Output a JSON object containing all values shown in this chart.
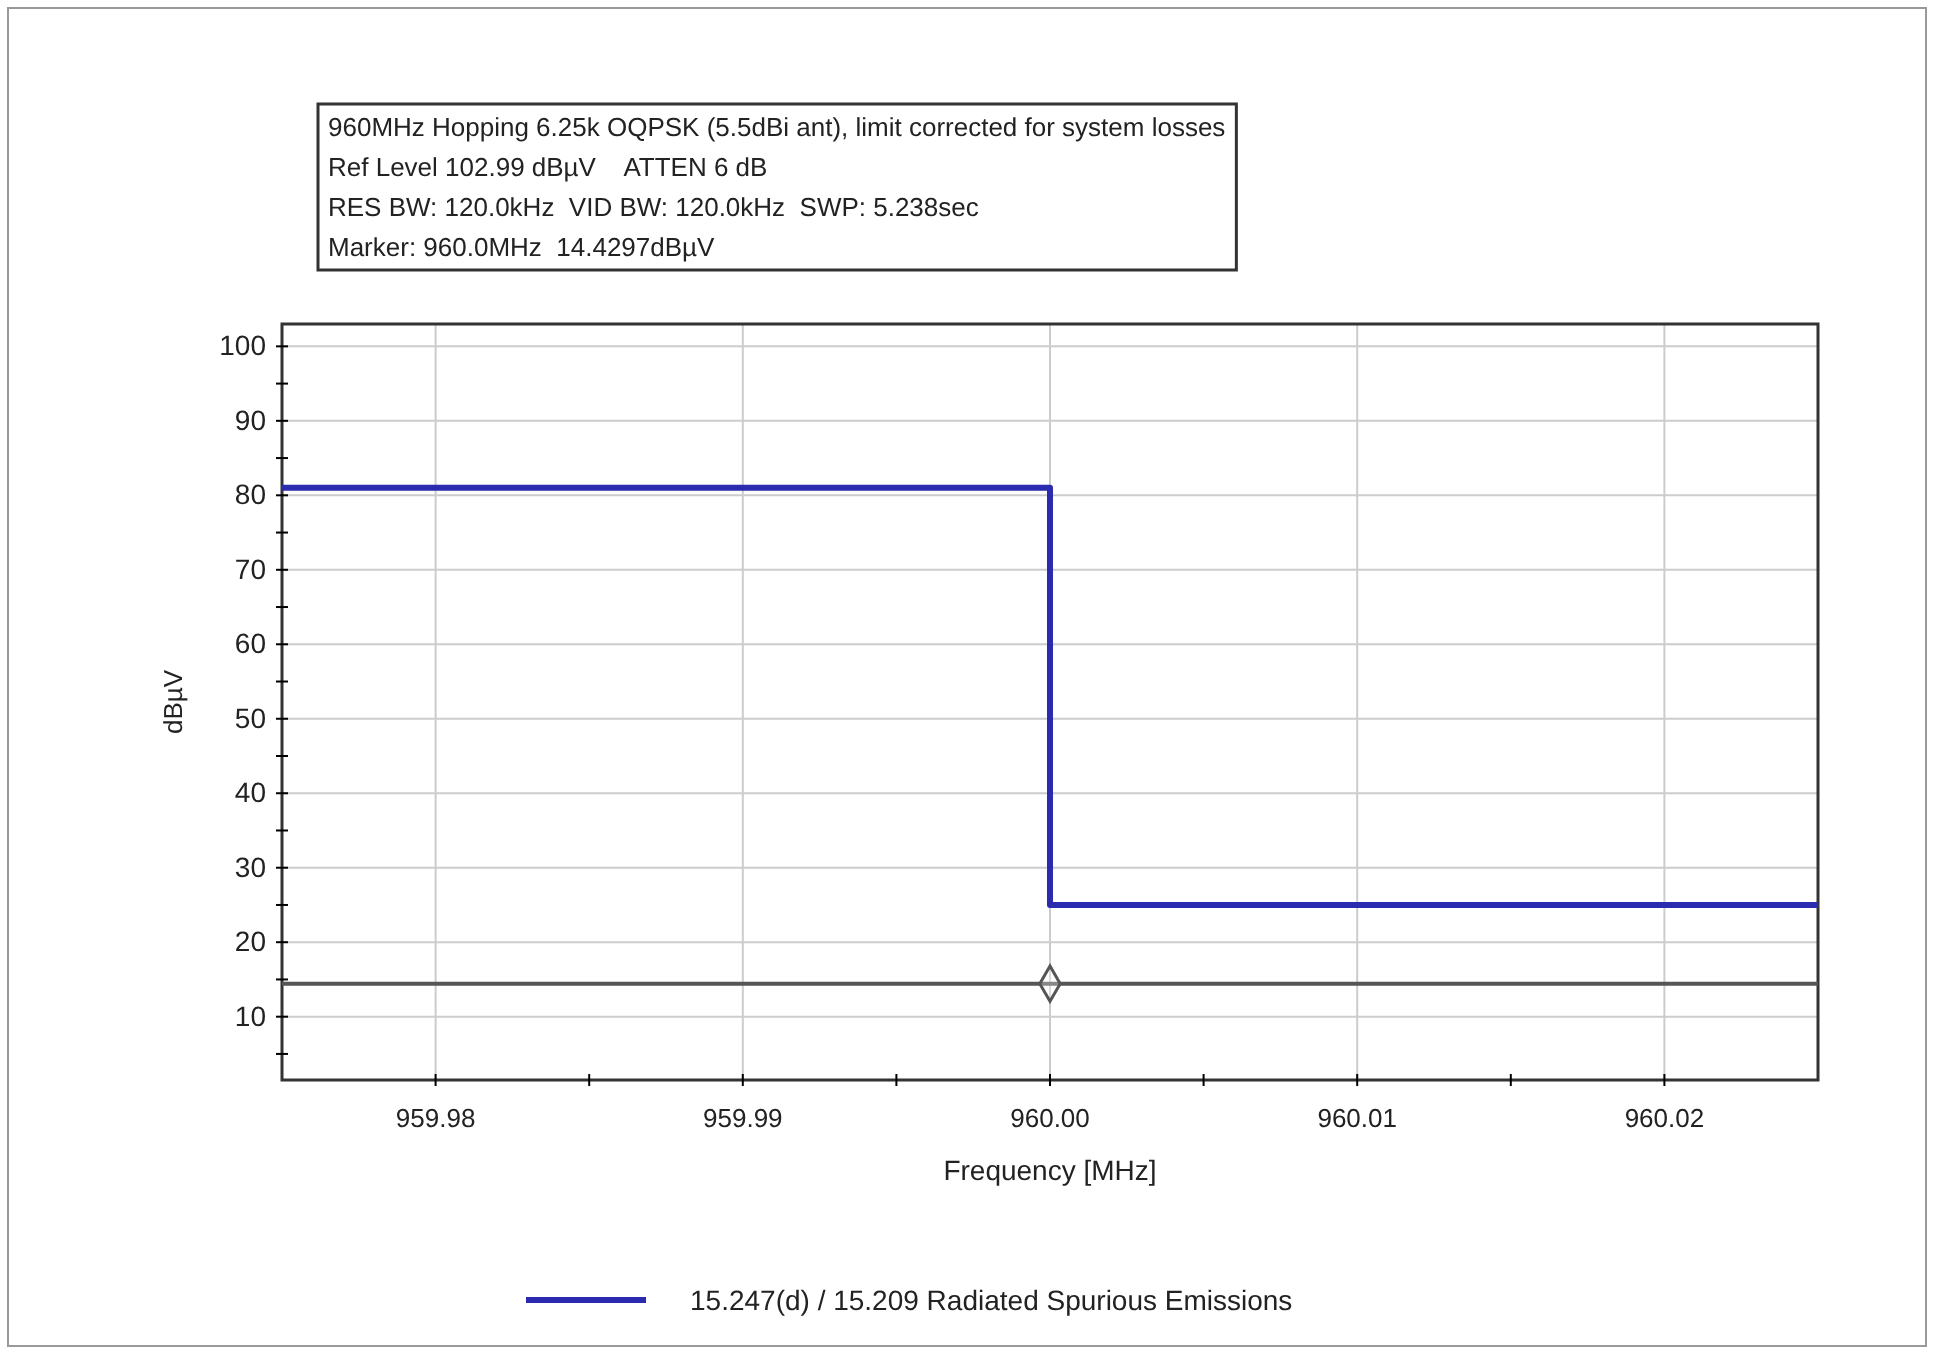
{
  "chart_data": {
    "type": "step",
    "title": "960MHz Hopping 6.25k OQPSK (5.5dBi ant), limit corrected for system losses",
    "annotations": [
      "Ref Level 102.99 dBµV    ATTEN 6 dB",
      "RES BW: 120.0kHz  VID BW: 120.0kHz  SWP: 5.238sec",
      "Marker: 960.0MHz  14.4297dBµV"
    ],
    "xlabel": "Frequency [MHz]",
    "ylabel": "dBµV",
    "xlim": [
      959.975,
      960.025
    ],
    "ylim": [
      1.5,
      103
    ],
    "xticks": [
      {
        "value": 959.98,
        "label": "959.98"
      },
      {
        "value": 959.985,
        "label": null
      },
      {
        "value": 959.99,
        "label": "959.99"
      },
      {
        "value": 959.995,
        "label": null
      },
      {
        "value": 960.0,
        "label": "960.00"
      },
      {
        "value": 960.005,
        "label": null
      },
      {
        "value": 960.01,
        "label": "960.01"
      },
      {
        "value": 960.015,
        "label": null
      },
      {
        "value": 960.02,
        "label": "960.02"
      }
    ],
    "yticks": [
      {
        "value": 5,
        "label": null
      },
      10,
      {
        "value": 15,
        "label": null
      },
      20,
      {
        "value": 25,
        "label": null
      },
      30,
      {
        "value": 35,
        "label": null
      },
      40,
      {
        "value": 45,
        "label": null
      },
      50,
      {
        "value": 55,
        "label": null
      },
      60,
      {
        "value": 65,
        "label": null
      },
      70,
      {
        "value": 75,
        "label": null
      },
      80,
      {
        "value": 85,
        "label": null
      },
      90,
      {
        "value": 95,
        "label": null
      },
      100
    ],
    "grid": true,
    "legend": "bottom",
    "ref_lines": [
      {
        "axis": "y",
        "value": 14.4297,
        "color": "#555555"
      }
    ],
    "series": [
      {
        "name": "15.247(d) / 15.209 Radiated Spurious Emissions",
        "color": "#2b2bb0",
        "x": [
          959.975,
          960.0,
          960.025
        ],
        "values": [
          81,
          25,
          25
        ]
      },
      {
        "type": "scatter",
        "marker": "diamond",
        "color": "#555555",
        "x": [
          960.0
        ],
        "values": [
          14.4297
        ]
      }
    ]
  }
}
